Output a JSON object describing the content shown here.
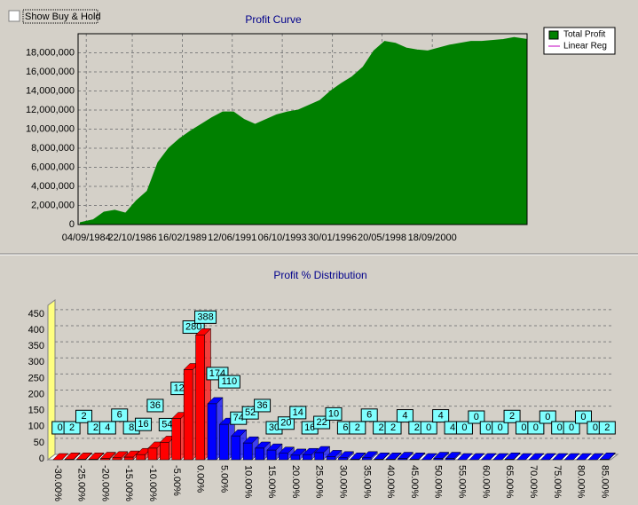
{
  "checkbox": {
    "label": "Show Buy & Hold"
  },
  "chart_data": [
    {
      "type": "area",
      "title": "Profit Curve",
      "x": [
        1984.4,
        1985,
        1985.5,
        1986,
        1986.5,
        1987,
        1987.5,
        1988,
        1988.5,
        1989,
        1989.5,
        1990,
        1990.5,
        1991,
        1991.5,
        1992,
        1992.5,
        1993,
        1993.5,
        1994,
        1994.5,
        1995,
        1995.5,
        1996,
        1996.5,
        1997,
        1997.5,
        1998,
        1998.5,
        1999,
        1999.5,
        2000,
        2000.5,
        2001,
        2001.5,
        2002,
        2002.5,
        2003,
        2004,
        2004.5,
        2005.1
      ],
      "series": [
        {
          "name": "Total Profit",
          "color": "#008000",
          "values": [
            200000,
            500000,
            1300000,
            1500000,
            1200000,
            2500000,
            3500000,
            6500000,
            8000000,
            9000000,
            9800000,
            10500000,
            11200000,
            11800000,
            11800000,
            11000000,
            10500000,
            11000000,
            11500000,
            11800000,
            12000000,
            12500000,
            13000000,
            14000000,
            14800000,
            15500000,
            16500000,
            18200000,
            19200000,
            19000000,
            18500000,
            18300000,
            18200000,
            18500000,
            18800000,
            19000000,
            19200000,
            19200000,
            19400000,
            19600000,
            19400000
          ]
        },
        {
          "name": "Linear Reg",
          "color": "#c000c0"
        }
      ],
      "xlim": [
        1984.3,
        2005.1
      ],
      "xticks": [
        {
          "value": 1984.68,
          "label": "04/09/1984"
        },
        {
          "value": 1986.81,
          "label": "22/10/1986"
        },
        {
          "value": 1989.13,
          "label": "16/02/1989"
        },
        {
          "value": 1991.44,
          "label": "12/06/1991"
        },
        {
          "value": 1993.76,
          "label": "06/10/1993"
        },
        {
          "value": 1996.08,
          "label": "30/01/1996"
        },
        {
          "value": 1998.38,
          "label": "20/05/1998"
        },
        {
          "value": 2000.71,
          "label": "18/09/2000"
        }
      ],
      "ylim": [
        0,
        20000000
      ],
      "yticks": [
        0,
        {
          "value": 2000000,
          "label": "2,000,000"
        },
        {
          "value": 4000000,
          "label": "4,000,000"
        },
        {
          "value": 6000000,
          "label": "6,000,000"
        },
        {
          "value": 8000000,
          "label": "8,000,000"
        },
        {
          "value": 10000000,
          "label": "10,000,000"
        },
        {
          "value": 12000000,
          "label": "12,000,000"
        },
        {
          "value": 14000000,
          "label": "14,000,000"
        },
        {
          "value": 16000000,
          "label": "16,000,000"
        },
        {
          "value": 18000000,
          "label": "18,000,000"
        }
      ],
      "grid": true,
      "legend": "top-right"
    },
    {
      "type": "bar3d",
      "title": "Profit % Distribution",
      "categories": [
        "-30.00%",
        null,
        "-25.00%",
        null,
        "-20.00%",
        null,
        "-15.00%",
        null,
        "-10.00%",
        null,
        "-5.00%",
        null,
        "0.00%",
        null,
        "5.00%",
        null,
        "10.00%",
        null,
        "15.00%",
        null,
        "20.00%",
        null,
        "25.00%",
        null,
        "30.00%",
        null,
        "35.00%",
        null,
        "40.00%",
        null,
        "45.00%",
        null,
        "50.00%",
        null,
        "55.00%",
        null,
        "60.00%",
        null,
        "65.00%",
        null,
        "70.00%",
        null,
        "75.00%",
        null,
        "80.00%",
        null,
        "85.00%"
      ],
      "values": [
        0,
        2,
        2,
        2,
        4,
        6,
        8,
        16,
        36,
        54,
        128,
        280,
        388,
        174,
        110,
        74,
        52,
        36,
        30,
        20,
        14,
        16,
        22,
        10,
        6,
        2,
        6,
        2,
        2,
        4,
        2,
        0,
        4,
        4,
        0,
        0,
        0,
        0,
        2,
        0,
        0,
        0,
        0,
        0,
        0,
        0,
        2
      ],
      "colors": [
        "#ff0000",
        "#ff0000",
        "#ff0000",
        "#ff0000",
        "#ff0000",
        "#ff0000",
        "#ff0000",
        "#ff0000",
        "#ff0000",
        "#ff0000",
        "#ff0000",
        "#ff0000",
        "#ff0000",
        "#0000ff",
        "#0000ff",
        "#0000ff",
        "#0000ff",
        "#0000ff",
        "#0000ff",
        "#0000ff",
        "#0000ff",
        "#0000ff",
        "#0000ff",
        "#0000ff",
        "#0000ff",
        "#0000ff",
        "#0000ff",
        "#0000ff",
        "#0000ff",
        "#0000ff",
        "#0000ff",
        "#0000ff",
        "#0000ff",
        "#0000ff",
        "#0000ff",
        "#0000ff",
        "#0000ff",
        "#0000ff",
        "#0000ff",
        "#0000ff",
        "#0000ff",
        "#0000ff",
        "#0000ff",
        "#0000ff",
        "#0000ff",
        "#0000ff",
        "#0000ff"
      ],
      "ylim": [
        0,
        480
      ],
      "yticks": [
        0,
        50,
        100,
        150,
        200,
        250,
        300,
        350,
        400,
        450
      ],
      "grid": true
    }
  ]
}
